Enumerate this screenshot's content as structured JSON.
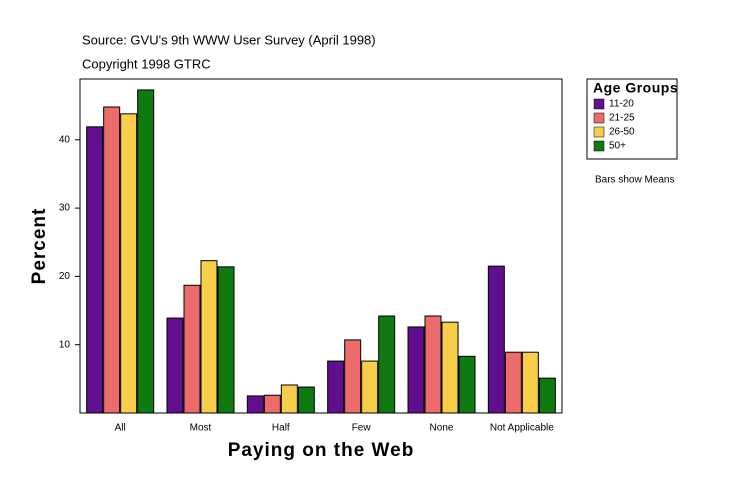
{
  "chart_data": {
    "type": "bar",
    "title": "Source: GVU's 9th WWW User Survey (April 1998)",
    "subtitle": "Copyright 1998 GTRC",
    "x_label": "Paying on the Web",
    "y_label": "Percent",
    "legend_title": "Age Groups",
    "annotation": "Bars show Means",
    "categories": [
      "All",
      "Most",
      "Half",
      "Few",
      "None",
      "Not Applicable"
    ],
    "series": [
      {
        "name": "11-20",
        "color": "#5f0f8f",
        "values": [
          41.9,
          13.9,
          2.5,
          7.6,
          12.6,
          21.5
        ]
      },
      {
        "name": "21-25",
        "color": "#ee6b6b",
        "values": [
          44.8,
          18.7,
          2.6,
          10.7,
          14.2,
          8.9
        ]
      },
      {
        "name": "26-50",
        "color": "#f7ce4a",
        "values": [
          43.8,
          22.3,
          4.1,
          7.6,
          13.3,
          8.9
        ]
      },
      {
        "name": "50+",
        "color": "#0f7a0f",
        "values": [
          47.3,
          21.4,
          3.8,
          14.2,
          8.3,
          5.1
        ]
      }
    ],
    "ylim": [
      0,
      48.9
    ],
    "yticks": [
      10,
      20,
      30,
      40
    ],
    "grid": false,
    "legend": "right"
  }
}
